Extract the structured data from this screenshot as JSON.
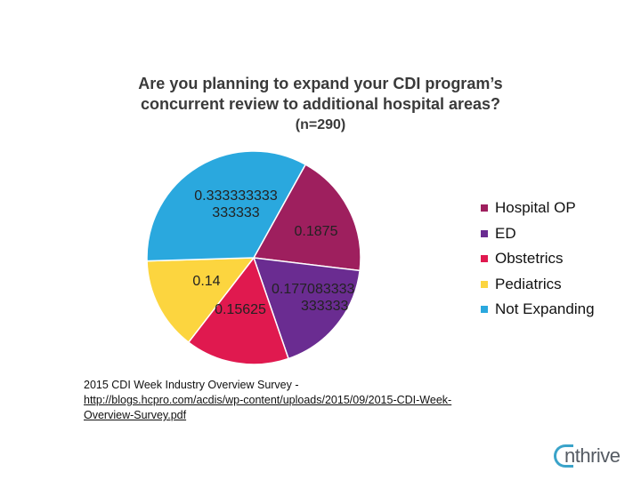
{
  "chart_data": {
    "type": "pie",
    "title_line1": "Are you planning to expand your CDI program’s",
    "title_line2": "concurrent review to additional hospital areas?",
    "subtitle": "(n=290)",
    "start_angle_deg": 29,
    "slices": [
      {
        "name": "Hospital OP",
        "value": 0.1875,
        "label": "0.1875",
        "color": "#9e1f5e"
      },
      {
        "name": "ED",
        "value": 0.177083333333333,
        "label": "0.177083333333333",
        "color": "#6a2c91"
      },
      {
        "name": "Obstetrics",
        "value": 0.15625,
        "label": "0.15625",
        "color": "#e0194f"
      },
      {
        "name": "Pediatrics",
        "value": 0.14,
        "label": "0.14",
        "color": "#fcd53f"
      },
      {
        "name": "Not Expanding",
        "value": 0.333333333333333,
        "label": "0.333333333333333",
        "color": "#2aa8de"
      }
    ],
    "legend_position": "right"
  },
  "source": {
    "line1": "2015 CDI Week Industry Overview Survey -",
    "url": "http://blogs.hcpro.com/acdis/wp-content/uploads/2015/09/2015-CDI-Week-Overview-Survey.pdf"
  },
  "logo": {
    "text": "nthrive",
    "color": "#3aa3c9"
  }
}
